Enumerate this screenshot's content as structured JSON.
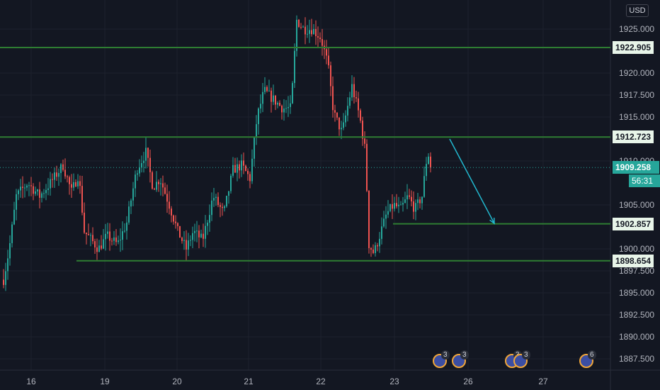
{
  "currency": "USD",
  "colors": {
    "up": "#26a69a",
    "down": "#ef5350",
    "level": "#2e7d32",
    "arrow": "#22b8cf",
    "bg": "#131722",
    "grid": "#1e222d"
  },
  "chart_data": {
    "type": "candlestick",
    "y_range": [
      1886.0,
      1929.2
    ],
    "y_ticks": [
      "1925.000",
      "1920.000",
      "1917.500",
      "1915.000",
      "1910.000",
      "1905.000",
      "1900.000",
      "1897.500",
      "1895.000",
      "1892.500",
      "1890.000",
      "1887.500"
    ],
    "x_ticks": [
      "16",
      "19",
      "20",
      "21",
      "22",
      "23",
      "26",
      "27"
    ],
    "horizontal_levels": [
      {
        "price": 1922.905,
        "label": "1922.905"
      },
      {
        "price": 1912.723,
        "label": "1912.723"
      },
      {
        "price": 1902.857,
        "label": "1902.857"
      },
      {
        "price": 1898.654,
        "label": "1898.654"
      }
    ],
    "current_price": {
      "price": 1909.258,
      "label": "1909.258",
      "countdown": "56:31"
    },
    "projection_arrow": {
      "from": [
        635,
        1912.5
      ],
      "to": [
        698,
        1902.9
      ]
    },
    "events": [
      {
        "count": "3"
      },
      {
        "count": "3"
      },
      {
        "count": "3"
      },
      {
        "count": "3"
      },
      {
        "count": "6"
      }
    ]
  }
}
